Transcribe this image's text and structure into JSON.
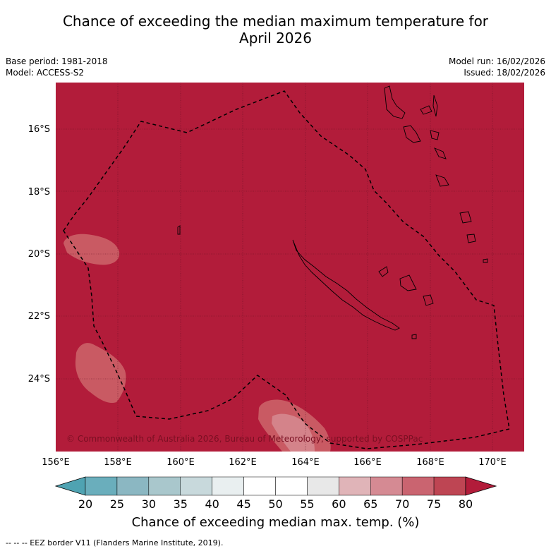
{
  "title_line1": "Chance of exceeding the median maximum temperature for",
  "title_line2": "April 2026",
  "meta": {
    "base_period": "Base period: 1981-2018",
    "model": "Model: ACCESS-S2",
    "model_run": "Model run: 16/02/2026",
    "issued": "Issued: 18/02/2026"
  },
  "map": {
    "lat_labels": [
      "16°S",
      "18°S",
      "20°S",
      "22°S",
      "24°S"
    ],
    "lon_labels": [
      "156°E",
      "158°E",
      "160°E",
      "162°E",
      "164°E",
      "166°E",
      "168°E",
      "170°E"
    ],
    "copyright": "© Commonwealth of Australia 2026, Bureau of Meteorology, supported by COSPPac",
    "colors": {
      "background_fill": "#b21c3a",
      "anomaly_patch": "#c95a63",
      "anomaly_core": "#d4838a"
    }
  },
  "colorbar": {
    "ticks": [
      "20",
      "25",
      "30",
      "35",
      "40",
      "45",
      "50",
      "55",
      "60",
      "65",
      "70",
      "75",
      "80"
    ],
    "colors": [
      "#6aaebc",
      "#8bb7c2",
      "#a9c7cc",
      "#c8d9dc",
      "#e9eff0",
      "#ffffff",
      "#ffffff",
      "#e8e8e8",
      "#e0b4b8",
      "#d58a93",
      "#ca6470",
      "#be4553"
    ],
    "low_extend_color": "#4fa3b2",
    "high_extend_color": "#b21c3a",
    "label": "Chance of exceeding median max. temp. (%)"
  },
  "footnote": "--  --  -- EEZ border V11 (Flanders Marine Institute, 2019)."
}
